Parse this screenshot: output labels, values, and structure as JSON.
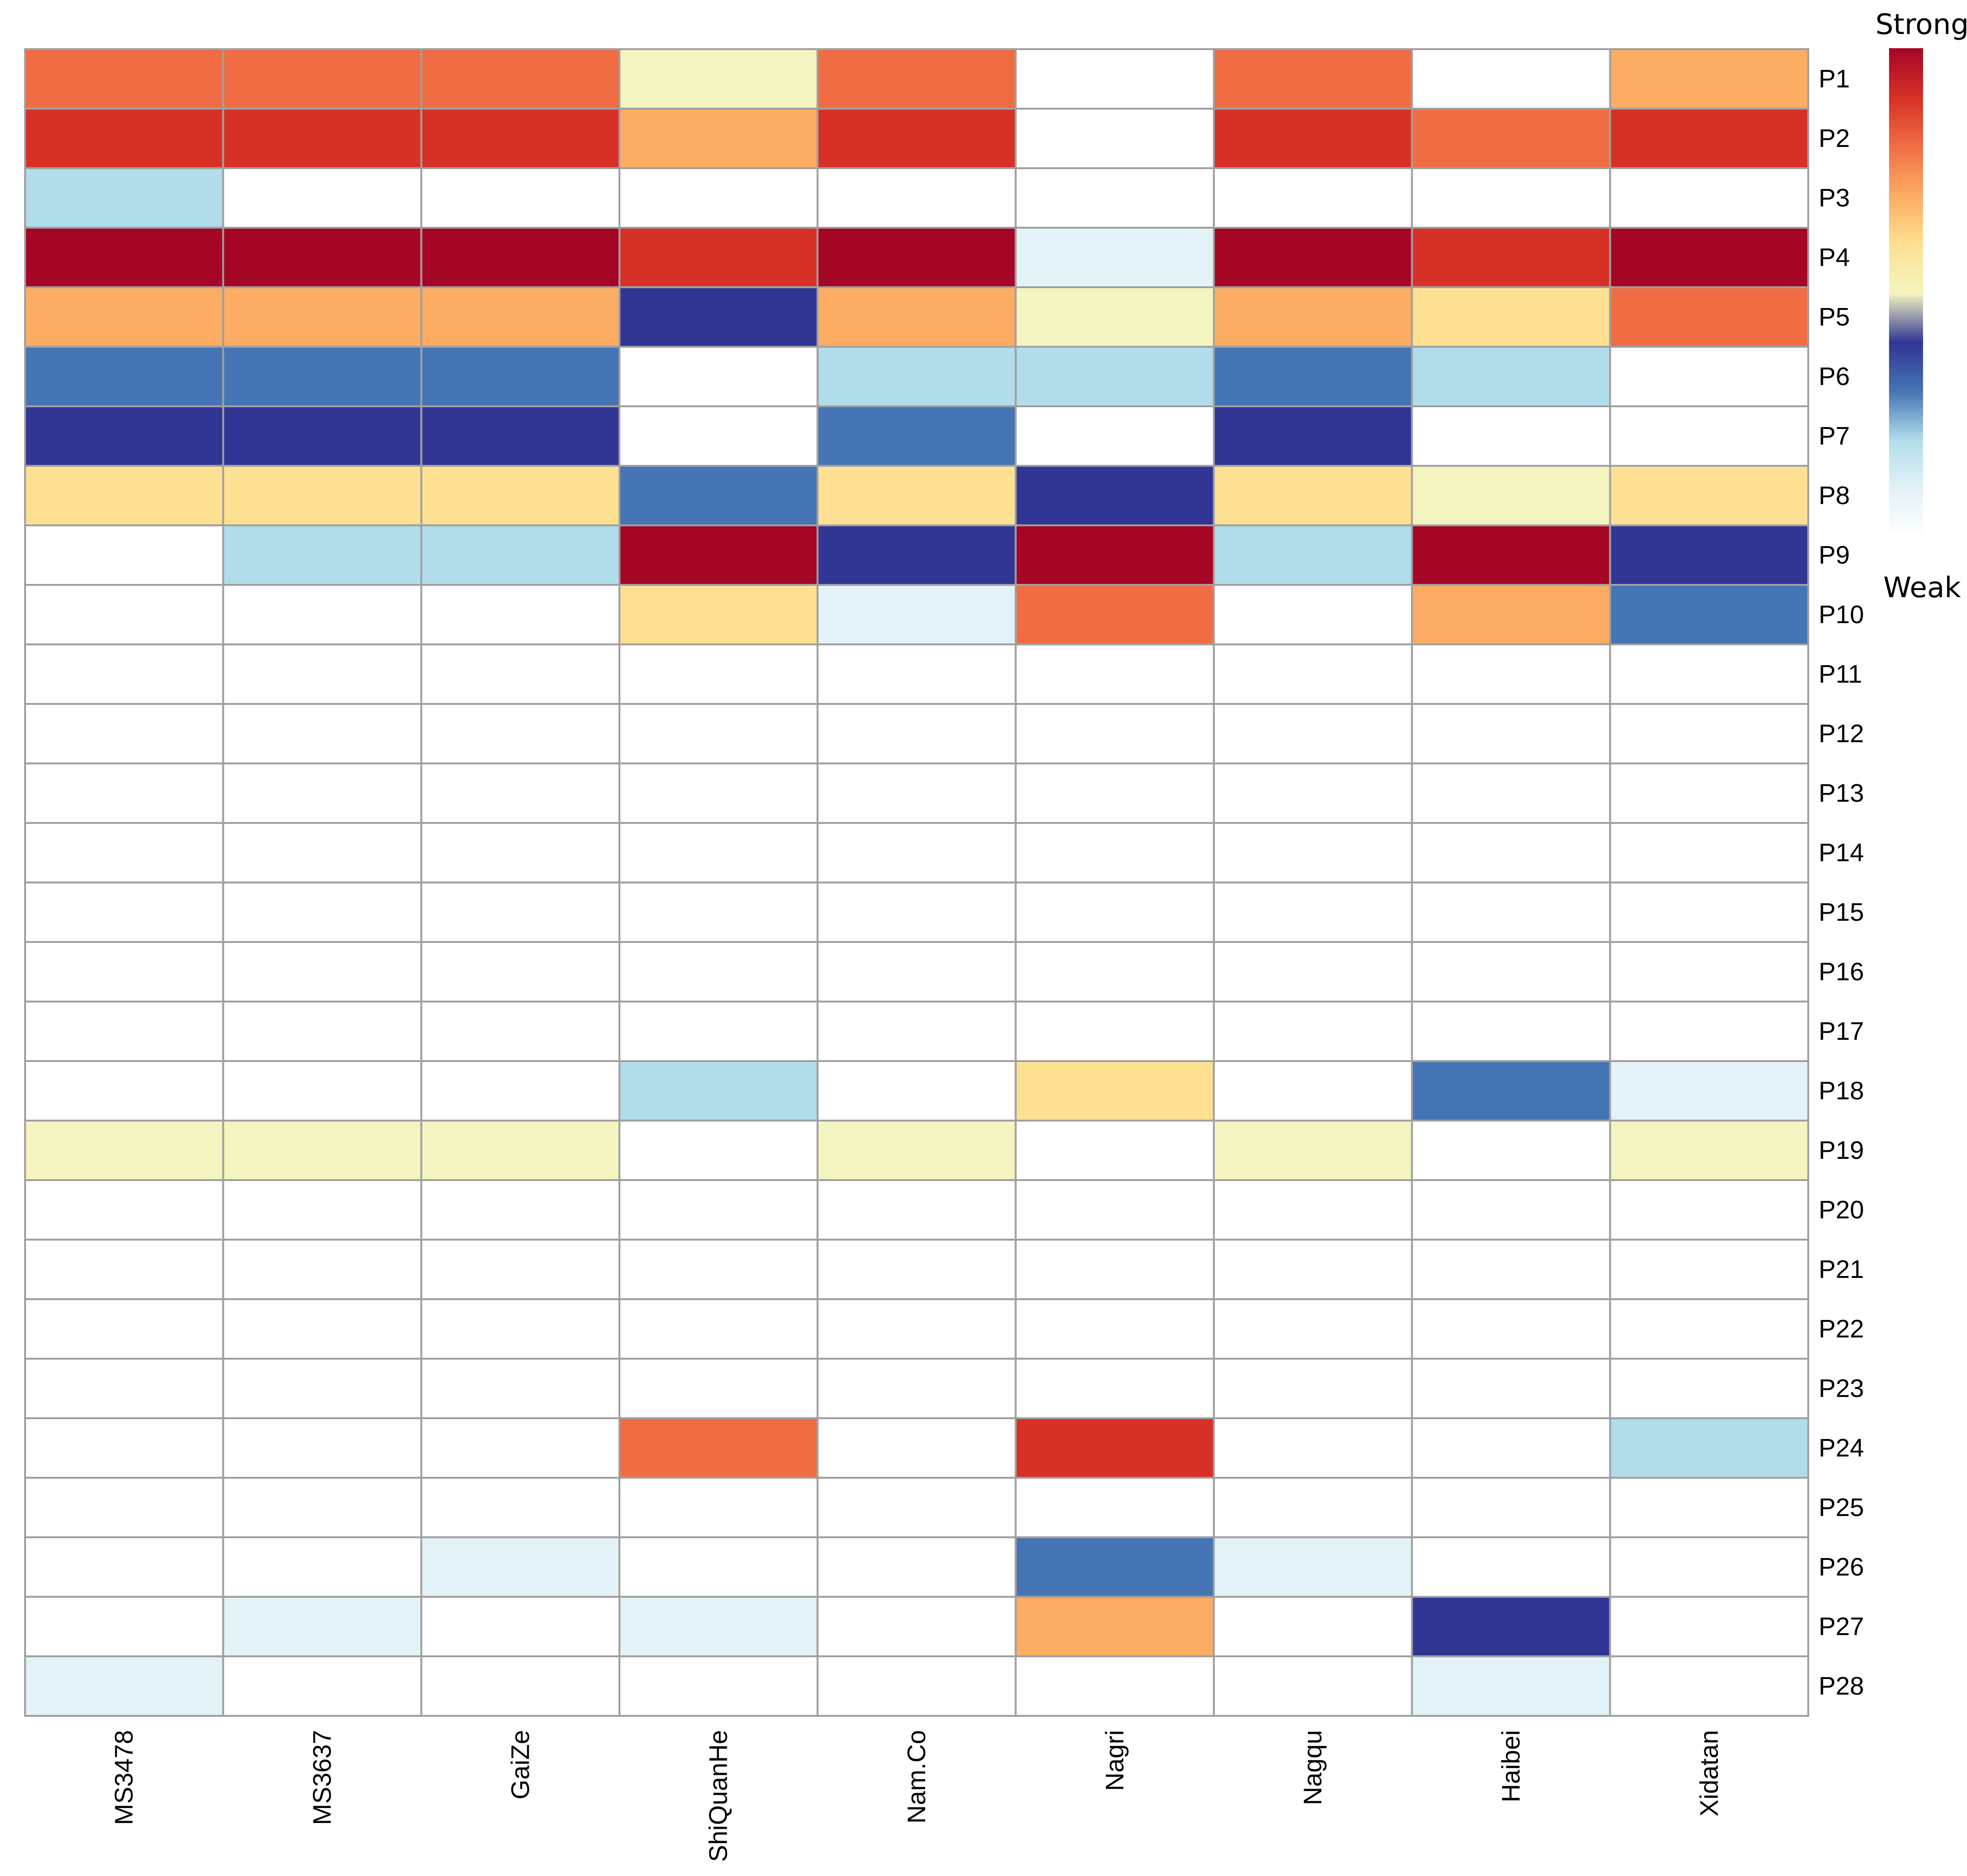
{
  "chart_data": {
    "type": "heatmap",
    "columns": [
      "MS3478",
      "MS3637",
      "GaiZe",
      "ShiQuanHe",
      "Nam.Co",
      "Nagri",
      "Nagqu",
      "Haibei",
      "Xidatan"
    ],
    "rows": [
      "P1",
      "P2",
      "P3",
      "P4",
      "P5",
      "P6",
      "P7",
      "P8",
      "P9",
      "P10",
      "P11",
      "P12",
      "P13",
      "P14",
      "P15",
      "P16",
      "P17",
      "P18",
      "P19",
      "P20",
      "P21",
      "P22",
      "P23",
      "P24",
      "P25",
      "P26",
      "P27",
      "P28"
    ],
    "values": [
      [
        6,
        6,
        6,
        4,
        6,
        0,
        6,
        0,
        5
      ],
      [
        7,
        7,
        7,
        5,
        7,
        0,
        7,
        6,
        7
      ],
      [
        1,
        0,
        0,
        0,
        0,
        0,
        0,
        0,
        0
      ],
      [
        8,
        8,
        8,
        7,
        8,
        1,
        8,
        7,
        8
      ],
      [
        5,
        5,
        5,
        3,
        5,
        4,
        5,
        4,
        6
      ],
      [
        2,
        2,
        2,
        0,
        1,
        1,
        2,
        1,
        0
      ],
      [
        3,
        3,
        3,
        0,
        2,
        0,
        3,
        0,
        0
      ],
      [
        4,
        4,
        4,
        2,
        4,
        3,
        4,
        4,
        4
      ],
      [
        0,
        1,
        1,
        8,
        3,
        8,
        1,
        8,
        3
      ],
      [
        0,
        0,
        0,
        4,
        1,
        6,
        0,
        5,
        2
      ],
      [
        0,
        0,
        0,
        0,
        0,
        0,
        0,
        0,
        0
      ],
      [
        0,
        0,
        0,
        0,
        0,
        0,
        0,
        0,
        0
      ],
      [
        0,
        0,
        0,
        0,
        0,
        0,
        0,
        0,
        0
      ],
      [
        0,
        0,
        0,
        0,
        0,
        0,
        0,
        0,
        0
      ],
      [
        0,
        0,
        0,
        0,
        0,
        0,
        0,
        0,
        0
      ],
      [
        0,
        0,
        0,
        0,
        0,
        0,
        0,
        0,
        0
      ],
      [
        0,
        0,
        0,
        0,
        0,
        0,
        0,
        0,
        0
      ],
      [
        0,
        0,
        0,
        1,
        0,
        4,
        0,
        2,
        1
      ],
      [
        4,
        4,
        4,
        0,
        4,
        0,
        4,
        0,
        4
      ],
      [
        0,
        0,
        0,
        0,
        0,
        0,
        0,
        0,
        0
      ],
      [
        0,
        0,
        0,
        0,
        0,
        0,
        0,
        0,
        0
      ],
      [
        0,
        0,
        0,
        0,
        0,
        0,
        0,
        0,
        0
      ],
      [
        0,
        0,
        0,
        0,
        0,
        0,
        0,
        0,
        0
      ],
      [
        0,
        0,
        0,
        6,
        0,
        7,
        0,
        0,
        1
      ],
      [
        0,
        0,
        0,
        0,
        0,
        0,
        0,
        0,
        0
      ],
      [
        0,
        0,
        1,
        0,
        0,
        2,
        1,
        0,
        0
      ],
      [
        0,
        1,
        0,
        1,
        0,
        5,
        0,
        3,
        0
      ],
      [
        1,
        0,
        0,
        0,
        0,
        0,
        0,
        1,
        0
      ]
    ],
    "cell_colors": [
      [
        "#F06D43",
        "#F06D43",
        "#F06D43",
        "#F4F4C0",
        "#F06D43",
        "#FFFFFF",
        "#F06D43",
        "#FFFFFF",
        "#FCAC63"
      ],
      [
        "#D63027",
        "#D63027",
        "#D63027",
        "#FCAC63",
        "#D63027",
        "#FFFFFF",
        "#D63027",
        "#F06D43",
        "#D63027"
      ],
      [
        "#B1DDEA",
        "#FFFFFF",
        "#FFFFFF",
        "#FFFFFF",
        "#FFFFFF",
        "#FFFFFF",
        "#FFFFFF",
        "#FFFFFF",
        "#FFFFFF"
      ],
      [
        "#A60626",
        "#A60626",
        "#A60626",
        "#D63027",
        "#A60626",
        "#E3F2F7",
        "#A60626",
        "#D63027",
        "#A60626"
      ],
      [
        "#FCAC63",
        "#FCAC63",
        "#FCAC63",
        "#313695",
        "#FCAC63",
        "#F4F4C0",
        "#FCAC63",
        "#FDE092",
        "#F06D43"
      ],
      [
        "#4575B4",
        "#4575B4",
        "#4575B4",
        "#FFFFFF",
        "#B1DDEA",
        "#B1DDEA",
        "#4575B4",
        "#B1DDEA",
        "#FFFFFF"
      ],
      [
        "#313695",
        "#313695",
        "#313695",
        "#FFFFFF",
        "#4575B4",
        "#FFFFFF",
        "#313695",
        "#FFFFFF",
        "#FFFFFF"
      ],
      [
        "#FDE092",
        "#FDE092",
        "#FDE092",
        "#4575B4",
        "#FDE092",
        "#313695",
        "#FDE092",
        "#F4F4C0",
        "#FDE092"
      ],
      [
        "#FFFFFF",
        "#B1DDEA",
        "#B1DDEA",
        "#A60626",
        "#313695",
        "#A60626",
        "#B1DDEA",
        "#A60626",
        "#313695"
      ],
      [
        "#FFFFFF",
        "#FFFFFF",
        "#FFFFFF",
        "#FDE092",
        "#E3F2F7",
        "#F06D43",
        "#FFFFFF",
        "#FCAC63",
        "#4575B4"
      ],
      [
        "#FFFFFF",
        "#FFFFFF",
        "#FFFFFF",
        "#FFFFFF",
        "#FFFFFF",
        "#FFFFFF",
        "#FFFFFF",
        "#FFFFFF",
        "#FFFFFF"
      ],
      [
        "#FFFFFF",
        "#FFFFFF",
        "#FFFFFF",
        "#FFFFFF",
        "#FFFFFF",
        "#FFFFFF",
        "#FFFFFF",
        "#FFFFFF",
        "#FFFFFF"
      ],
      [
        "#FFFFFF",
        "#FFFFFF",
        "#FFFFFF",
        "#FFFFFF",
        "#FFFFFF",
        "#FFFFFF",
        "#FFFFFF",
        "#FFFFFF",
        "#FFFFFF"
      ],
      [
        "#FFFFFF",
        "#FFFFFF",
        "#FFFFFF",
        "#FFFFFF",
        "#FFFFFF",
        "#FFFFFF",
        "#FFFFFF",
        "#FFFFFF",
        "#FFFFFF"
      ],
      [
        "#FFFFFF",
        "#FFFFFF",
        "#FFFFFF",
        "#FFFFFF",
        "#FFFFFF",
        "#FFFFFF",
        "#FFFFFF",
        "#FFFFFF",
        "#FFFFFF"
      ],
      [
        "#FFFFFF",
        "#FFFFFF",
        "#FFFFFF",
        "#FFFFFF",
        "#FFFFFF",
        "#FFFFFF",
        "#FFFFFF",
        "#FFFFFF",
        "#FFFFFF"
      ],
      [
        "#FFFFFF",
        "#FFFFFF",
        "#FFFFFF",
        "#FFFFFF",
        "#FFFFFF",
        "#FFFFFF",
        "#FFFFFF",
        "#FFFFFF",
        "#FFFFFF"
      ],
      [
        "#FFFFFF",
        "#FFFFFF",
        "#FFFFFF",
        "#B1DDEA",
        "#FFFFFF",
        "#FDE092",
        "#FFFFFF",
        "#4575B4",
        "#E3F2F7"
      ],
      [
        "#F4F4C0",
        "#F4F4C0",
        "#F4F4C0",
        "#FFFFFF",
        "#F4F4C0",
        "#FFFFFF",
        "#F4F4C0",
        "#FFFFFF",
        "#F4F4C0"
      ],
      [
        "#FFFFFF",
        "#FFFFFF",
        "#FFFFFF",
        "#FFFFFF",
        "#FFFFFF",
        "#FFFFFF",
        "#FFFFFF",
        "#FFFFFF",
        "#FFFFFF"
      ],
      [
        "#FFFFFF",
        "#FFFFFF",
        "#FFFFFF",
        "#FFFFFF",
        "#FFFFFF",
        "#FFFFFF",
        "#FFFFFF",
        "#FFFFFF",
        "#FFFFFF"
      ],
      [
        "#FFFFFF",
        "#FFFFFF",
        "#FFFFFF",
        "#FFFFFF",
        "#FFFFFF",
        "#FFFFFF",
        "#FFFFFF",
        "#FFFFFF",
        "#FFFFFF"
      ],
      [
        "#FFFFFF",
        "#FFFFFF",
        "#FFFFFF",
        "#FFFFFF",
        "#FFFFFF",
        "#FFFFFF",
        "#FFFFFF",
        "#FFFFFF",
        "#FFFFFF"
      ],
      [
        "#FFFFFF",
        "#FFFFFF",
        "#FFFFFF",
        "#F06D43",
        "#FFFFFF",
        "#D63027",
        "#FFFFFF",
        "#FFFFFF",
        "#B1DDEA"
      ],
      [
        "#FFFFFF",
        "#FFFFFF",
        "#FFFFFF",
        "#FFFFFF",
        "#FFFFFF",
        "#FFFFFF",
        "#FFFFFF",
        "#FFFFFF",
        "#FFFFFF"
      ],
      [
        "#FFFFFF",
        "#FFFFFF",
        "#E3F2F7",
        "#FFFFFF",
        "#FFFFFF",
        "#4575B4",
        "#E3F2F7",
        "#FFFFFF",
        "#FFFFFF"
      ],
      [
        "#FFFFFF",
        "#E3F2F7",
        "#FFFFFF",
        "#E3F2F7",
        "#FFFFFF",
        "#FCAC63",
        "#FFFFFF",
        "#313695",
        "#FFFFFF"
      ],
      [
        "#E3F2F7",
        "#FFFFFF",
        "#FFFFFF",
        "#FFFFFF",
        "#FFFFFF",
        "#FFFFFF",
        "#FFFFFF",
        "#E3F2F7",
        "#FFFFFF"
      ]
    ],
    "legend": {
      "label_top": "Strong",
      "label_bottom": "Weak",
      "position": "top-right",
      "gradient": [
        "#A60626",
        "#D63027",
        "#F06D43",
        "#FCAC63",
        "#FDE092",
        "#F4F4C0",
        "#313695",
        "#4575B4",
        "#B1DDEA",
        "#E3F2F7",
        "#FFFFFF"
      ]
    },
    "grid_color": "#A0A0A0",
    "grid": true
  }
}
